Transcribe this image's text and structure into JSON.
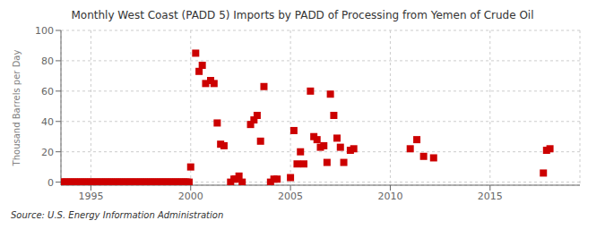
{
  "chart_data": {
    "type": "scatter",
    "title": "Monthly West Coast (PADD 5) Imports by PADD of Processing from Yemen of Crude Oil",
    "ylabel": "Thousand Barrels per Day",
    "annotations": [
      "Source: U.S. Energy Information Administration"
    ],
    "xlim": [
      1993.5,
      2019.5
    ],
    "ylim": [
      -2,
      100
    ],
    "xticks": [
      1995,
      2000,
      2005,
      2010,
      2015
    ],
    "yticks": [
      0,
      20,
      40,
      60,
      80,
      100
    ],
    "grid": true,
    "color": "#cc0000",
    "marker": "square",
    "x": [
      1993.5,
      1993.58,
      1993.67,
      1993.75,
      1993.83,
      1993.92,
      1994.0,
      1994.08,
      1994.17,
      1994.25,
      1994.33,
      1994.42,
      1994.5,
      1994.58,
      1994.67,
      1994.75,
      1994.83,
      1994.92,
      1995.0,
      1995.08,
      1995.17,
      1995.25,
      1995.33,
      1995.42,
      1995.5,
      1995.58,
      1995.67,
      1995.75,
      1995.83,
      1995.92,
      1996.0,
      1996.08,
      1996.17,
      1996.25,
      1996.33,
      1996.42,
      1996.5,
      1996.58,
      1996.67,
      1996.75,
      1996.83,
      1996.92,
      1997.0,
      1997.08,
      1997.17,
      1997.25,
      1997.33,
      1997.42,
      1997.5,
      1997.58,
      1997.67,
      1997.75,
      1997.83,
      1997.92,
      1998.0,
      1998.08,
      1998.17,
      1998.25,
      1998.33,
      1998.42,
      1998.5,
      1998.58,
      1998.67,
      1998.75,
      1998.83,
      1998.92,
      1999.0,
      1999.08,
      1999.17,
      1999.25,
      1999.33,
      1999.42,
      1999.5,
      1999.58,
      1999.67,
      1999.75,
      1999.83,
      1999.92,
      2000.0,
      2000.25,
      2000.42,
      2000.58,
      2000.75,
      2001.0,
      2001.17,
      2001.33,
      2001.5,
      2001.67,
      2002.0,
      2002.17,
      2002.25,
      2002.42,
      2002.58,
      2003.0,
      2003.17,
      2003.33,
      2003.5,
      2003.67,
      2004.0,
      2004.17,
      2004.33,
      2005.0,
      2005.17,
      2005.33,
      2005.5,
      2005.67,
      2006.0,
      2006.17,
      2006.33,
      2006.5,
      2006.67,
      2006.83,
      2007.0,
      2007.17,
      2007.33,
      2007.5,
      2007.67,
      2008.0,
      2008.17,
      2011.0,
      2011.33,
      2011.67,
      2012.17,
      2017.67,
      2017.83,
      2018.0
    ],
    "values": [
      0,
      0,
      0,
      0,
      0,
      0,
      0,
      0,
      0,
      0,
      0,
      0,
      0,
      0,
      0,
      0,
      0,
      0,
      0,
      0,
      0,
      0,
      0,
      0,
      0,
      0,
      0,
      0,
      0,
      0,
      0,
      0,
      0,
      0,
      0,
      0,
      0,
      0,
      0,
      0,
      0,
      0,
      0,
      0,
      0,
      0,
      0,
      0,
      0,
      0,
      0,
      0,
      0,
      0,
      0,
      0,
      0,
      0,
      0,
      0,
      0,
      0,
      0,
      0,
      0,
      0,
      0,
      0,
      0,
      0,
      0,
      0,
      0,
      0,
      0,
      0,
      0,
      0,
      10,
      85,
      73,
      77,
      65,
      67,
      65,
      39,
      25,
      24,
      0,
      2,
      2,
      4,
      0,
      38,
      41,
      44,
      27,
      63,
      0,
      2,
      2,
      3,
      34,
      12,
      20,
      12,
      60,
      30,
      28,
      23,
      24,
      13,
      58,
      44,
      29,
      23,
      13,
      21,
      22,
      22,
      28,
      17,
      16,
      6,
      21,
      22
    ]
  }
}
